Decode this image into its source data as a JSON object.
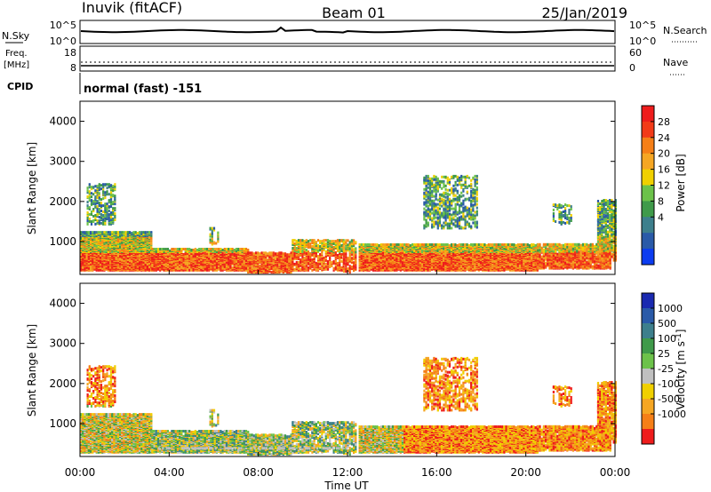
{
  "header": {
    "station": "Inuvik (fitACF)",
    "beam": "Beam 01",
    "date": "25/Jan/2019"
  },
  "top_panel": {
    "left_label": "N.Sky",
    "left_ticks": [
      "10^5",
      "10^0"
    ],
    "right_ticks": [
      "10^5",
      "10^0"
    ],
    "right_label": "N.Search"
  },
  "freq_panel": {
    "left_label_line1": "Freq.",
    "left_label_line2": "[MHz]",
    "left_ticks": [
      "18",
      "8"
    ],
    "right_ticks": [
      "60",
      "0"
    ],
    "right_label": "Nave",
    "cpid_label": "CPID",
    "cpid_text": "normal (fast) -151"
  },
  "colors": {
    "red": "#ee1c1c",
    "orange": "#f57f17",
    "yellow": "#f0d000",
    "lightgreen": "#6cc24a",
    "green": "#3f9a4a",
    "teal": "#3d7f8c",
    "blue": "#2a5aa8",
    "grey": "#c0c0c0"
  },
  "chart_data": [
    {
      "type": "heatmap",
      "title": "",
      "xlabel": "Time UT",
      "ylabel": "Slant Range [km]",
      "ylim": [
        180,
        4500
      ],
      "x_ticks": [
        "00:00",
        "04:00",
        "08:00",
        "12:00",
        "16:00",
        "20:00",
        "00:00"
      ],
      "y_ticks": [
        "1000",
        "2000",
        "3000",
        "4000"
      ],
      "colorbar": {
        "label": "Power [dB]",
        "ticks": [
          "28",
          "24",
          "20",
          "16",
          "12",
          "8",
          "4"
        ],
        "colors": [
          "#ee1c1c",
          "#f23a18",
          "#f57f17",
          "#f5a623",
          "#f0d000",
          "#6cc24a",
          "#3f9a4a",
          "#3d7f8c",
          "#2a5aa8",
          "#0c3cf0"
        ]
      }
    },
    {
      "type": "heatmap",
      "title": "",
      "xlabel": "Time UT",
      "ylabel": "Slant Range [km]",
      "ylim": [
        180,
        4500
      ],
      "x_ticks": [
        "00:00",
        "04:00",
        "08:00",
        "12:00",
        "16:00",
        "20:00",
        "00:00"
      ],
      "y_ticks": [
        "1000",
        "2000",
        "3000",
        "4000"
      ],
      "colorbar": {
        "label": "Velocity [m s",
        "label_sup": "-1",
        "label_end": "]",
        "ticks": [
          "1000",
          "500",
          "100",
          "25",
          "-25",
          "-100",
          "-500",
          "-1000"
        ],
        "colors": [
          "#1a2ab0",
          "#2a5aa8",
          "#3d7f8c",
          "#3f9a4a",
          "#6cc24a",
          "#c0c0c0",
          "#f0d000",
          "#f5a623",
          "#f57f17",
          "#ee1c1c"
        ]
      }
    }
  ]
}
